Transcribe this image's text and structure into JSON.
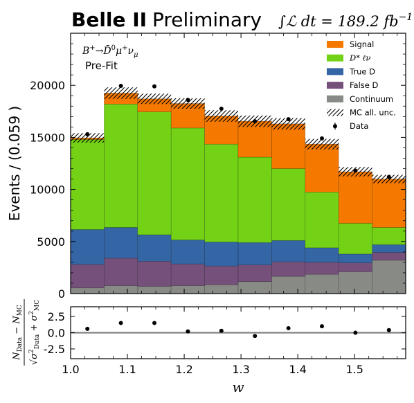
{
  "header": {
    "experiment": "Belle II",
    "status": "Preliminary",
    "lumi_prefix": "∫ℒ dt = 189.2 fb",
    "lumi_exp": "−1"
  },
  "annotations": {
    "decay_prefix": "B",
    "decay_arrow": "→",
    "decay_dbar": "D̄",
    "decay_mu": "μ",
    "decay_nu": "ν",
    "decay_sub": "μ",
    "decay_sup_plus": "+",
    "decay_sup_zero": "0",
    "fit_stage": "Pre-Fit"
  },
  "chart_data": [
    {
      "type": "bar",
      "stacked": true,
      "panel": "main",
      "ylabel": "Events / (0.059 )",
      "xlim": [
        1.0,
        1.59
      ],
      "ylim": [
        0,
        25000
      ],
      "bin_edges": [
        1.0,
        1.059,
        1.118,
        1.177,
        1.236,
        1.295,
        1.354,
        1.413,
        1.472,
        1.531,
        1.59
      ],
      "yticks": [
        0,
        5000,
        10000,
        15000,
        20000
      ],
      "legend_position": "top-right",
      "series": [
        {
          "name": "Continuum",
          "color": "#888a85",
          "values": [
            550,
            750,
            700,
            750,
            850,
            1150,
            1650,
            1850,
            2100,
            3200
          ]
        },
        {
          "name": "False D",
          "color": "#75507b",
          "values": [
            2250,
            2650,
            2400,
            2100,
            1800,
            1600,
            1400,
            1150,
            850,
            750
          ]
        },
        {
          "name": "True D",
          "color": "#3465a4",
          "values": [
            3350,
            2950,
            2550,
            2300,
            2300,
            2150,
            2050,
            1400,
            850,
            750
          ]
        },
        {
          "name": "D* ℓν",
          "color": "#73d216",
          "values": [
            8650,
            11850,
            11800,
            10750,
            9400,
            8200,
            6900,
            5350,
            2950,
            1650
          ]
        },
        {
          "name": "Signal",
          "color": "#f57900",
          "values": [
            150,
            1050,
            1250,
            2350,
            2700,
            3450,
            4300,
            4600,
            4950,
            4650
          ]
        }
      ],
      "mc_uncertainty": [
        450,
        550,
        500,
        500,
        550,
        550,
        550,
        500,
        450,
        400
      ],
      "data": {
        "name": "Data",
        "x": [
          1.0295,
          1.0885,
          1.1475,
          1.2065,
          1.2655,
          1.3245,
          1.3835,
          1.4425,
          1.5015,
          1.5605
        ],
        "y": [
          15300,
          19950,
          19900,
          18600,
          17750,
          16550,
          16750,
          14900,
          11800,
          11200
        ]
      },
      "legend": [
        "Signal",
        "D* ℓν",
        "True D",
        "False D",
        "Continuum",
        "MC all. unc.",
        "Data"
      ]
    },
    {
      "type": "scatter",
      "panel": "pull",
      "xlabel": "w",
      "ylabel": "(N_Data − N_MC) / sqrt(σ²_Data + σ²_MC)",
      "xlim": [
        1.0,
        1.59
      ],
      "ylim": [
        -4,
        4
      ],
      "yticks": [
        -2.5,
        0.0,
        2.5
      ],
      "xticks": [
        1.0,
        1.1,
        1.2,
        1.3,
        1.4,
        1.5
      ],
      "reference_line": 0,
      "x": [
        1.0295,
        1.0885,
        1.1475,
        1.2065,
        1.2655,
        1.3245,
        1.3835,
        1.4425,
        1.5015,
        1.5605
      ],
      "y": [
        0.6,
        1.5,
        1.5,
        0.2,
        0.3,
        -0.5,
        0.7,
        1.0,
        0.0,
        0.4
      ]
    }
  ]
}
